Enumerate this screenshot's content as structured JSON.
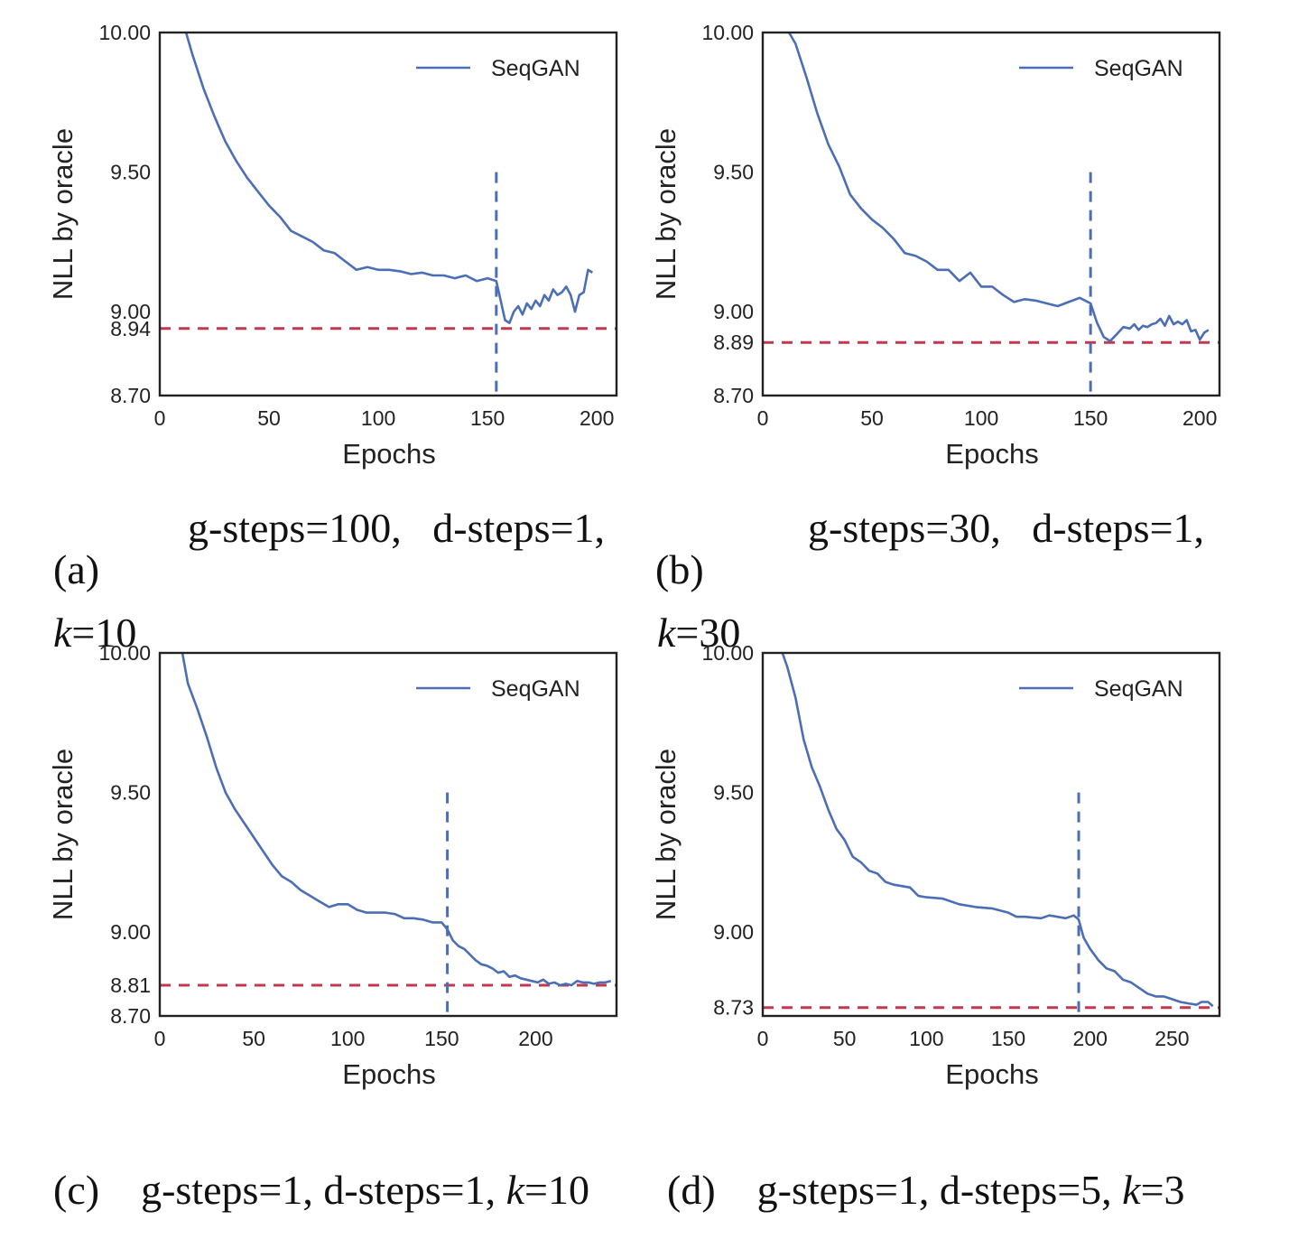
{
  "colors": {
    "series": "#4c6eb5",
    "reference_line": "#c0394f",
    "pretrain_marker": "#4c6eb5",
    "axis": "#222222"
  },
  "chart_data": [
    {
      "id": "a",
      "type": "line",
      "title": "",
      "xlabel": "Epochs",
      "ylabel": "NLL by oracle",
      "xlim": [
        0,
        209
      ],
      "ylim": [
        8.7,
        10.0
      ],
      "xticks": [
        0,
        50,
        100,
        150,
        200
      ],
      "yticks": [
        8.7,
        8.94,
        9.0,
        9.5,
        10.0
      ],
      "ytick_labels": [
        "8.70",
        "8.94",
        "9.00",
        "9.50",
        "10.00"
      ],
      "grid": false,
      "legend": {
        "position": "top-right",
        "entries": [
          "SeqGAN"
        ]
      },
      "reference_hline": {
        "y": 8.94,
        "style": "dashed"
      },
      "pretrain_vline": {
        "x": 154,
        "y_top": 9.5,
        "style": "dashed"
      },
      "caption": {
        "tag": "(a)",
        "text": "g-steps=100,   d-steps=1,",
        "k_line": "=10"
      },
      "series": [
        {
          "name": "SeqGAN",
          "x": [
            12,
            15,
            20,
            25,
            30,
            35,
            40,
            45,
            50,
            55,
            60,
            65,
            70,
            75,
            80,
            85,
            90,
            95,
            100,
            105,
            110,
            115,
            120,
            125,
            130,
            135,
            140,
            145,
            150,
            154,
            156,
            158,
            160,
            162,
            164,
            166,
            168,
            170,
            172,
            174,
            176,
            178,
            180,
            182,
            184,
            186,
            188,
            190,
            192,
            194,
            196,
            198
          ],
          "y": [
            10.0,
            9.92,
            9.8,
            9.7,
            9.61,
            9.54,
            9.48,
            9.43,
            9.38,
            9.34,
            9.29,
            9.27,
            9.25,
            9.22,
            9.21,
            9.18,
            9.15,
            9.16,
            9.15,
            9.15,
            9.145,
            9.135,
            9.14,
            9.13,
            9.13,
            9.12,
            9.13,
            9.11,
            9.12,
            9.11,
            9.04,
            8.97,
            8.96,
            9.0,
            9.02,
            8.99,
            9.03,
            9.01,
            9.04,
            9.02,
            9.06,
            9.04,
            9.08,
            9.06,
            9.07,
            9.09,
            9.06,
            9.0,
            9.06,
            9.07,
            9.15,
            9.14
          ]
        }
      ]
    },
    {
      "id": "b",
      "type": "line",
      "title": "",
      "xlabel": "Epochs",
      "ylabel": "NLL by oracle",
      "xlim": [
        0,
        209
      ],
      "ylim": [
        8.7,
        10.0
      ],
      "xticks": [
        0,
        50,
        100,
        150,
        200
      ],
      "yticks": [
        8.7,
        8.89,
        9.0,
        9.5,
        10.0
      ],
      "ytick_labels": [
        "8.70",
        "8.89",
        "9.00",
        "9.50",
        "10.00"
      ],
      "grid": false,
      "legend": {
        "position": "top-right",
        "entries": [
          "SeqGAN"
        ]
      },
      "reference_hline": {
        "y": 8.89,
        "style": "dashed"
      },
      "pretrain_vline": {
        "x": 150,
        "y_top": 9.5,
        "style": "dashed"
      },
      "caption": {
        "tag": "(b)",
        "text": "g-steps=30,   d-steps=1,",
        "k_line": "=30"
      },
      "series": [
        {
          "name": "SeqGAN",
          "x": [
            12,
            15,
            20,
            25,
            30,
            35,
            40,
            45,
            50,
            55,
            60,
            65,
            70,
            75,
            80,
            85,
            90,
            95,
            100,
            105,
            110,
            115,
            120,
            125,
            130,
            135,
            140,
            145,
            150,
            153,
            156,
            159,
            162,
            165,
            168,
            170,
            172,
            174,
            176,
            178,
            180,
            182,
            184,
            186,
            188,
            190,
            192,
            194,
            196,
            198,
            200,
            202,
            204
          ],
          "y": [
            10.0,
            9.96,
            9.84,
            9.71,
            9.6,
            9.52,
            9.42,
            9.37,
            9.33,
            9.3,
            9.26,
            9.21,
            9.2,
            9.18,
            9.15,
            9.15,
            9.11,
            9.14,
            9.09,
            9.09,
            9.06,
            9.035,
            9.045,
            9.04,
            9.03,
            9.02,
            9.035,
            9.05,
            9.03,
            8.96,
            8.91,
            8.895,
            8.92,
            8.945,
            8.94,
            8.955,
            8.935,
            8.95,
            8.945,
            8.955,
            8.96,
            8.975,
            8.95,
            8.985,
            8.955,
            8.965,
            8.955,
            8.97,
            8.93,
            8.935,
            8.9,
            8.925,
            8.935
          ]
        }
      ]
    },
    {
      "id": "c",
      "type": "line",
      "title": "",
      "xlabel": "Epochs",
      "ylabel": "NLL by oracle",
      "xlim": [
        0,
        243
      ],
      "ylim": [
        8.7,
        10.0
      ],
      "xticks": [
        0,
        50,
        100,
        150,
        200
      ],
      "yticks": [
        8.7,
        8.81,
        9.0,
        9.5,
        10.0
      ],
      "ytick_labels": [
        "8.70",
        "8.81",
        "9.00",
        "9.50",
        "10.00"
      ],
      "grid": false,
      "legend": {
        "position": "top-right",
        "entries": [
          "SeqGAN"
        ]
      },
      "reference_hline": {
        "y": 8.81,
        "style": "dashed"
      },
      "pretrain_vline": {
        "x": 153,
        "y_top": 9.5,
        "style": "dashed"
      },
      "caption": {
        "tag": "(c)",
        "text": "g-steps=1, d-steps=1, ",
        "k_line": "=10"
      },
      "series": [
        {
          "name": "SeqGAN",
          "x": [
            12,
            15,
            20,
            25,
            30,
            35,
            40,
            45,
            50,
            55,
            60,
            65,
            70,
            75,
            80,
            85,
            90,
            95,
            100,
            105,
            110,
            115,
            120,
            125,
            130,
            135,
            140,
            145,
            150,
            153,
            156,
            159,
            162,
            165,
            168,
            171,
            174,
            177,
            180,
            183,
            186,
            189,
            192,
            195,
            198,
            201,
            204,
            207,
            210,
            213,
            216,
            219,
            222,
            225,
            228,
            231,
            234,
            237,
            240
          ],
          "y": [
            10.0,
            9.89,
            9.8,
            9.7,
            9.59,
            9.5,
            9.44,
            9.39,
            9.34,
            9.29,
            9.24,
            9.2,
            9.18,
            9.15,
            9.13,
            9.11,
            9.09,
            9.1,
            9.1,
            9.08,
            9.07,
            9.07,
            9.07,
            9.065,
            9.05,
            9.05,
            9.045,
            9.035,
            9.035,
            9.01,
            8.97,
            8.95,
            8.94,
            8.92,
            8.9,
            8.885,
            8.88,
            8.87,
            8.855,
            8.86,
            8.84,
            8.845,
            8.835,
            8.83,
            8.825,
            8.82,
            8.83,
            8.815,
            8.82,
            8.81,
            8.815,
            8.81,
            8.825,
            8.82,
            8.82,
            8.815,
            8.82,
            8.82,
            8.825
          ]
        }
      ]
    },
    {
      "id": "d",
      "type": "line",
      "title": "",
      "xlabel": "Epochs",
      "ylabel": "NLL by oracle",
      "xlim": [
        0,
        279
      ],
      "ylim": [
        8.7,
        10.0
      ],
      "xticks": [
        0,
        50,
        100,
        150,
        200,
        250
      ],
      "yticks": [
        8.73,
        9.0,
        9.5,
        10.0
      ],
      "ytick_labels": [
        "8.73",
        "9.00",
        "9.50",
        "10.00"
      ],
      "grid": false,
      "legend": {
        "position": "top-right",
        "entries": [
          "SeqGAN"
        ]
      },
      "reference_hline": {
        "y": 8.73,
        "style": "dashed"
      },
      "pretrain_vline": {
        "x": 193,
        "y_top": 9.5,
        "style": "dashed"
      },
      "caption": {
        "tag": "(d)",
        "text": "g-steps=1, d-steps=5, ",
        "k_line": "=3"
      },
      "series": [
        {
          "name": "SeqGAN",
          "x": [
            12,
            15,
            20,
            25,
            30,
            35,
            40,
            45,
            50,
            55,
            60,
            65,
            70,
            75,
            80,
            85,
            90,
            95,
            100,
            110,
            120,
            130,
            140,
            150,
            155,
            160,
            170,
            175,
            180,
            185,
            190,
            193,
            196,
            200,
            205,
            210,
            215,
            220,
            225,
            230,
            235,
            240,
            245,
            250,
            255,
            260,
            265,
            268,
            272,
            275
          ],
          "y": [
            10.0,
            9.95,
            9.84,
            9.69,
            9.59,
            9.52,
            9.44,
            9.37,
            9.33,
            9.27,
            9.25,
            9.22,
            9.21,
            9.18,
            9.17,
            9.165,
            9.16,
            9.13,
            9.125,
            9.12,
            9.1,
            9.09,
            9.085,
            9.07,
            9.055,
            9.055,
            9.05,
            9.06,
            9.055,
            9.05,
            9.06,
            9.045,
            8.98,
            8.94,
            8.9,
            8.87,
            8.86,
            8.83,
            8.82,
            8.8,
            8.78,
            8.77,
            8.77,
            8.76,
            8.75,
            8.745,
            8.74,
            8.75,
            8.75,
            8.735
          ]
        }
      ]
    }
  ]
}
